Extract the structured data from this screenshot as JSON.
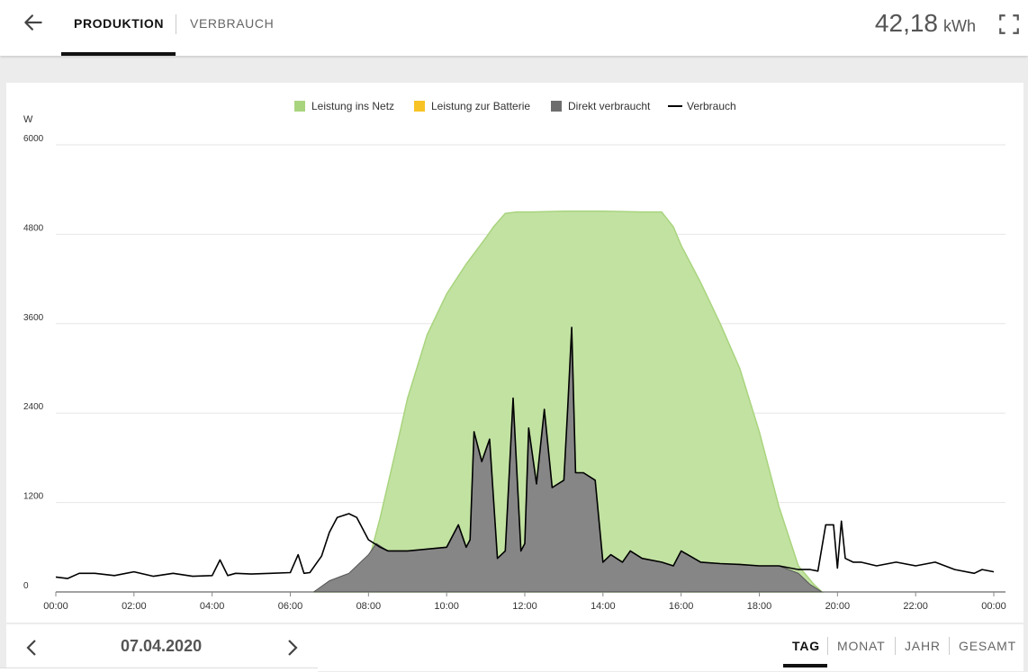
{
  "header": {
    "tabs": [
      {
        "label": "PRODUKTION",
        "active": true
      },
      {
        "label": "VERBRAUCH",
        "active": false
      }
    ],
    "energy_value": "42,18",
    "energy_unit": "kWh",
    "icons": {
      "back": "arrow-left-icon",
      "fullscreen": "fullscreen-icon"
    }
  },
  "footer": {
    "date": "07.04.2020",
    "periods": [
      {
        "label": "TAG",
        "active": true
      },
      {
        "label": "MONAT",
        "active": false
      },
      {
        "label": "JAHR",
        "active": false
      },
      {
        "label": "GESAMT",
        "active": false
      }
    ]
  },
  "colors": {
    "grid_feed": "#c2e2a2",
    "grid_feed_line": "#a9d47e",
    "battery": "#f7c325",
    "direct": "#868686",
    "consumption_line": "#000000"
  },
  "chart_data": {
    "type": "area",
    "ylabel": "W",
    "ylim": [
      0,
      6000
    ],
    "yticks": [
      0,
      1200,
      2400,
      3600,
      4800,
      6000
    ],
    "xlim": [
      0,
      24
    ],
    "xticks": [
      "00:00",
      "02:00",
      "04:00",
      "06:00",
      "08:00",
      "10:00",
      "12:00",
      "14:00",
      "16:00",
      "18:00",
      "20:00",
      "22:00",
      "00:00"
    ],
    "legend": [
      {
        "label": "Leistung ins Netz",
        "type": "box",
        "color": "#a9d47e"
      },
      {
        "label": "Leistung zur Batterie",
        "type": "box",
        "color": "#f7c325"
      },
      {
        "label": "Direkt verbraucht",
        "type": "box",
        "color": "#6d6d6d"
      },
      {
        "label": "Verbrauch",
        "type": "line",
        "color": "#000000"
      }
    ],
    "legend_position": "top-center",
    "grid": true,
    "series": [
      {
        "name": "Leistung ins Netz",
        "x": [
          6.6,
          7.0,
          7.5,
          8.0,
          8.3,
          8.7,
          9.0,
          9.5,
          10.0,
          10.5,
          11.0,
          11.2,
          11.5,
          11.8,
          12.0,
          12.2,
          13.0,
          14.0,
          15.0,
          15.5,
          15.8,
          16.0,
          16.5,
          17.0,
          17.5,
          18.0,
          18.5,
          19.0,
          19.4,
          19.6
        ],
        "y": [
          0,
          100,
          200,
          400,
          1000,
          1900,
          2600,
          3450,
          4000,
          4400,
          4750,
          4900,
          5080,
          5100,
          5100,
          5100,
          5110,
          5110,
          5100,
          5100,
          4900,
          4650,
          4150,
          3600,
          3000,
          2150,
          1150,
          350,
          100,
          0
        ]
      },
      {
        "name": "Direkt verbraucht",
        "x": [
          6.6,
          7.0,
          7.5,
          8.0,
          8.2,
          8.5,
          9.0,
          10.0,
          10.3,
          10.5,
          10.6,
          10.7,
          10.9,
          11.1,
          11.3,
          11.5,
          11.7,
          11.9,
          12.0,
          12.1,
          12.3,
          12.5,
          12.7,
          13.0,
          13.1,
          13.2,
          13.3,
          13.5,
          13.8,
          14.0,
          14.2,
          14.5,
          14.7,
          15.0,
          15.5,
          15.8,
          16.0,
          16.5,
          17.0,
          17.5,
          18.0,
          18.5,
          19.0,
          19.3,
          19.6
        ],
        "y": [
          0,
          150,
          250,
          500,
          650,
          550,
          550,
          600,
          900,
          600,
          700,
          2150,
          1750,
          2050,
          450,
          550,
          2600,
          550,
          650,
          2200,
          1450,
          2450,
          1400,
          1500,
          2500,
          3550,
          1600,
          1600,
          1500,
          400,
          500,
          400,
          550,
          450,
          400,
          350,
          550,
          400,
          380,
          370,
          350,
          350,
          250,
          100,
          0
        ]
      },
      {
        "name": "Verbrauch",
        "x": [
          0,
          0.3,
          0.6,
          1.0,
          1.5,
          2.0,
          2.5,
          3.0,
          3.5,
          4.0,
          4.2,
          4.4,
          4.6,
          5.0,
          5.5,
          6.0,
          6.2,
          6.35,
          6.5,
          6.8,
          7.0,
          7.2,
          7.5,
          7.7,
          8.0,
          8.3,
          8.5,
          9.0,
          10.0,
          10.3,
          10.5,
          10.6,
          10.7,
          10.9,
          11.1,
          11.3,
          11.5,
          11.7,
          11.9,
          12.0,
          12.1,
          12.3,
          12.5,
          12.7,
          13.0,
          13.1,
          13.2,
          13.3,
          13.5,
          13.8,
          14.0,
          14.2,
          14.5,
          14.7,
          15.0,
          15.5,
          15.8,
          16.0,
          16.5,
          17.0,
          17.5,
          18.0,
          18.5,
          19.0,
          19.3,
          19.5,
          19.7,
          19.9,
          20.0,
          20.1,
          20.2,
          20.4,
          20.6,
          21.0,
          21.5,
          22.0,
          22.5,
          23.0,
          23.5,
          23.7,
          24.0
        ],
        "y": [
          200,
          180,
          250,
          250,
          220,
          270,
          210,
          250,
          210,
          220,
          430,
          220,
          250,
          240,
          250,
          260,
          500,
          250,
          260,
          480,
          800,
          1000,
          1050,
          1000,
          700,
          600,
          550,
          550,
          600,
          900,
          600,
          700,
          2150,
          1750,
          2050,
          450,
          550,
          2600,
          550,
          650,
          2200,
          1450,
          2450,
          1400,
          1500,
          2500,
          3550,
          1600,
          1600,
          1500,
          400,
          500,
          400,
          550,
          450,
          400,
          350,
          550,
          400,
          380,
          370,
          350,
          350,
          300,
          300,
          280,
          900,
          900,
          320,
          950,
          450,
          400,
          400,
          350,
          400,
          350,
          400,
          300,
          250,
          300,
          270
        ]
      }
    ]
  }
}
